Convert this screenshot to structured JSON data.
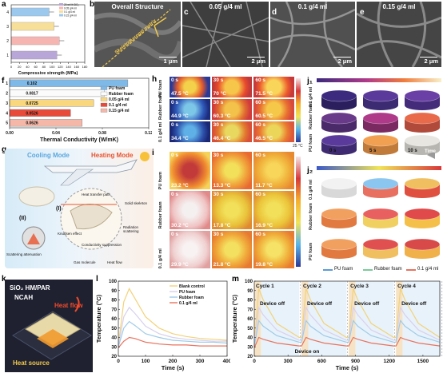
{
  "panels": {
    "a": {
      "label": "a",
      "xlabel": "Compressive strength (MPa)",
      "legend": [
        "20 wt.% SiO₂",
        "0.05 g/4 ml",
        "0.1 g/4 ml",
        "0.15 g/4 ml"
      ],
      "ticks": [
        "0",
        "20",
        "40",
        "60",
        "80",
        "100",
        "120",
        "140",
        "160",
        "180"
      ],
      "ycats": [
        "1",
        "2",
        "3",
        "4"
      ]
    },
    "b": {
      "label": "b",
      "title": "Overall Structure",
      "scale": "1 μm",
      "annot1": "Aerogel matrix",
      "annot2": "Skeleton"
    },
    "c": {
      "label": "c",
      "title": "0.05 g/4 ml",
      "scale": "2 μm"
    },
    "d": {
      "label": "d",
      "title": "0.1 g/4 ml",
      "scale": "2 μm"
    },
    "e": {
      "label": "e",
      "title": "0.15 g/4 ml",
      "scale": "2 μm"
    },
    "f": {
      "label": "f",
      "xlabel": "Thermal Conductivity (W/mK)",
      "legend": [
        "PU foam",
        "Rubber foam",
        "0.05 g/4 ml",
        "0.1 g/4 ml",
        "0.15 g/4 ml"
      ],
      "ticks": [
        "0.00",
        "0.04",
        "0.08",
        "0.12"
      ],
      "ycats": [
        "1",
        "2",
        "3",
        "4",
        "5"
      ]
    },
    "g": {
      "label": "g",
      "cooling": "Cooling Mode",
      "heating": "Heating Mode",
      "labels": [
        "Heat transfer path",
        "Solid skeleton",
        "Knudsen effect",
        "Radiation scattering",
        "Conductivity suppression",
        "Scattering attenuation",
        "Gas molecule",
        "Heat flow"
      ],
      "roman1": "(I)",
      "roman2": "(II)"
    },
    "h": {
      "label": "h",
      "times": [
        "0 s",
        "30 s",
        "60 s"
      ],
      "rows": [
        "PU foam",
        "Rubber foam",
        "0.1 g/4 ml"
      ],
      "temps": [
        [
          "47.5 °C",
          "70 °C",
          "71.5 °C"
        ],
        [
          "44.9 °C",
          "60.3 °C",
          "60.5 °C"
        ],
        [
          "34.4 °C",
          "46.4 °C",
          "46.5 °C"
        ]
      ],
      "scale_top": "85 °C",
      "scale_bottom": "25 °C"
    },
    "i": {
      "label": "i",
      "times": [
        "0 s",
        "30 s",
        "60 s"
      ],
      "rows": [
        "PU foam",
        "Rubber foam",
        "0.1 g/4 ml"
      ],
      "temps": [
        [
          "23.2 °C",
          "13.3 °C",
          "11.7 °C"
        ],
        [
          "30.2 °C",
          "17.8 °C",
          "16.9 °C"
        ],
        [
          "29.9 °C",
          "21.8 °C",
          "19.8 °C"
        ]
      ],
      "scale_top": "25 °C",
      "scale_bottom": "10 °C"
    },
    "j1": {
      "label": "j₁",
      "rows": [
        "0.1 g/4 ml",
        "Rubber foam",
        "PU foam"
      ],
      "times": [
        "0 s",
        "5 s",
        "10 s"
      ],
      "time_label": "Time"
    },
    "j2": {
      "label": "j₂",
      "rows": [
        "0.1 g/4 ml",
        "Rubber foam",
        "PU foam"
      ],
      "legend": [
        "PU foam",
        "Rubber foam",
        "0.1 g/4 ml"
      ]
    },
    "k": {
      "label": "k",
      "t1": "SiO₂ HM/PAR",
      "t2": "NCAH",
      "heat_flow": "Heat flow",
      "heat_source": "Heat source"
    },
    "l": {
      "label": "l",
      "xlabel": "Time (s)",
      "ylabel": "Temperature (°C)"
    },
    "m": {
      "label": "m",
      "xlabel": "Time (s)",
      "ylabel": "Temperature (°C)",
      "cycles": [
        "Cycle 1",
        "Cycle 2",
        "Cycle 3",
        "Cycle 4"
      ],
      "device_off": "Device off",
      "device_on": "Device on"
    }
  },
  "chart_data": [
    {
      "type": "bar",
      "panel": "a",
      "orientation": "horizontal",
      "categories": [
        "1",
        "2",
        "3",
        "4"
      ],
      "values": [
        112,
        118,
        105,
        93
      ],
      "colors": [
        "#b9a6d8",
        "#f6b5b0",
        "#f7df9a",
        "#9dc8ee"
      ],
      "xlabel": "Compressive strength (MPa)",
      "xlim": [
        0,
        180
      ]
    },
    {
      "type": "bar",
      "panel": "f",
      "orientation": "horizontal",
      "categories": [
        "1",
        "2",
        "3",
        "4",
        "5"
      ],
      "values": [
        0.102,
        0.0817,
        0.0725,
        0.0526,
        0.0626
      ],
      "data_labels": [
        "0.102",
        "0.0817",
        "0.0725",
        "0.0526",
        "0.0626"
      ],
      "series_names": [
        "PU foam",
        "Rubber foam",
        "0.05 g/4 ml",
        "0.1 g/4 ml",
        "0.15 g/4 ml"
      ],
      "colors": [
        "#7fb9e8",
        "#fbfbfb",
        "#f9d77e",
        "#e84a3a",
        "#f4b7a8"
      ],
      "xlabel": "Thermal Conductivity (W/mK)",
      "xlim": [
        0,
        0.12
      ]
    },
    {
      "type": "line",
      "panel": "l",
      "xlabel": "Time (s)",
      "ylabel": "Temperature (°C)",
      "xlim": [
        0,
        400
      ],
      "ylim": [
        20,
        100
      ],
      "xticks": [
        0,
        100,
        200,
        300,
        400
      ],
      "yticks": [
        20,
        30,
        40,
        50,
        60,
        70,
        80,
        90,
        100
      ],
      "series": [
        {
          "name": "Blank control",
          "color": "#f2d27a",
          "x": [
            0,
            20,
            40,
            60,
            100,
            150,
            200,
            250,
            300,
            350,
            400
          ],
          "y": [
            32,
            78,
            92,
            82,
            62,
            50,
            44,
            41,
            39,
            38,
            37
          ]
        },
        {
          "name": "PU foam",
          "color": "#d8d0ee",
          "x": [
            0,
            20,
            40,
            60,
            100,
            150,
            200,
            250,
            300,
            350,
            400
          ],
          "y": [
            31,
            62,
            72,
            66,
            52,
            44,
            40,
            38,
            37,
            36,
            36
          ]
        },
        {
          "name": "Rubber foam",
          "color": "#9fcbe8",
          "x": [
            0,
            20,
            40,
            60,
            100,
            150,
            200,
            250,
            300,
            350,
            400
          ],
          "y": [
            30,
            50,
            57,
            53,
            44,
            40,
            37,
            36,
            35,
            35,
            34
          ]
        },
        {
          "name": "0.1 g/4 ml",
          "color": "#e8735f",
          "x": [
            0,
            20,
            40,
            60,
            100,
            150,
            200,
            250,
            300,
            350,
            400
          ],
          "y": [
            29,
            36,
            40,
            39,
            35,
            33,
            32,
            32,
            31,
            31,
            31
          ]
        }
      ]
    },
    {
      "type": "line",
      "panel": "m",
      "xlabel": "Time (s)",
      "ylabel": "Temperature (°C)",
      "xlim": [
        0,
        1650
      ],
      "ylim": [
        20,
        100
      ],
      "xticks": [
        0,
        300,
        600,
        900,
        1200,
        1500
      ],
      "yticks": [
        20,
        30,
        40,
        50,
        60,
        70,
        80,
        90,
        100
      ],
      "series": [
        {
          "name": "Blank control",
          "color": "#f2d27a",
          "x": [
            0,
            40,
            80,
            200,
            400,
            420,
            460,
            500,
            620,
            820,
            840,
            880,
            920,
            1040,
            1240,
            1260,
            1300,
            1340,
            1460,
            1650
          ],
          "y": [
            32,
            92,
            80,
            55,
            40,
            40,
            92,
            80,
            55,
            40,
            40,
            92,
            80,
            55,
            40,
            40,
            92,
            80,
            55,
            40
          ]
        },
        {
          "name": "PU foam",
          "color": "#d8d0ee",
          "x": [
            0,
            40,
            80,
            200,
            400,
            420,
            460,
            500,
            620,
            820,
            840,
            880,
            920,
            1040,
            1240,
            1260,
            1300,
            1340,
            1460,
            1650
          ],
          "y": [
            31,
            72,
            64,
            48,
            37,
            37,
            72,
            64,
            48,
            37,
            37,
            72,
            64,
            48,
            37,
            37,
            72,
            64,
            48,
            37
          ]
        },
        {
          "name": "Rubber foam",
          "color": "#9fcbe8",
          "x": [
            0,
            40,
            80,
            200,
            400,
            420,
            460,
            500,
            620,
            820,
            840,
            880,
            920,
            1040,
            1240,
            1260,
            1300,
            1340,
            1460,
            1650
          ],
          "y": [
            30,
            58,
            52,
            42,
            35,
            35,
            58,
            52,
            42,
            35,
            35,
            58,
            52,
            42,
            35,
            35,
            58,
            52,
            42,
            35
          ]
        },
        {
          "name": "0.1 g/4 ml",
          "color": "#e8735f",
          "x": [
            0,
            40,
            80,
            200,
            400,
            420,
            460,
            500,
            620,
            820,
            840,
            880,
            920,
            1040,
            1240,
            1260,
            1300,
            1340,
            1460,
            1650
          ],
          "y": [
            29,
            40,
            38,
            34,
            31,
            31,
            40,
            38,
            34,
            31,
            31,
            40,
            38,
            34,
            31,
            31,
            40,
            38,
            34,
            31
          ]
        }
      ]
    }
  ],
  "colors": {
    "shading": "#f6e3c6",
    "cooling": "#5aa7e0",
    "heating": "#e8542f"
  }
}
